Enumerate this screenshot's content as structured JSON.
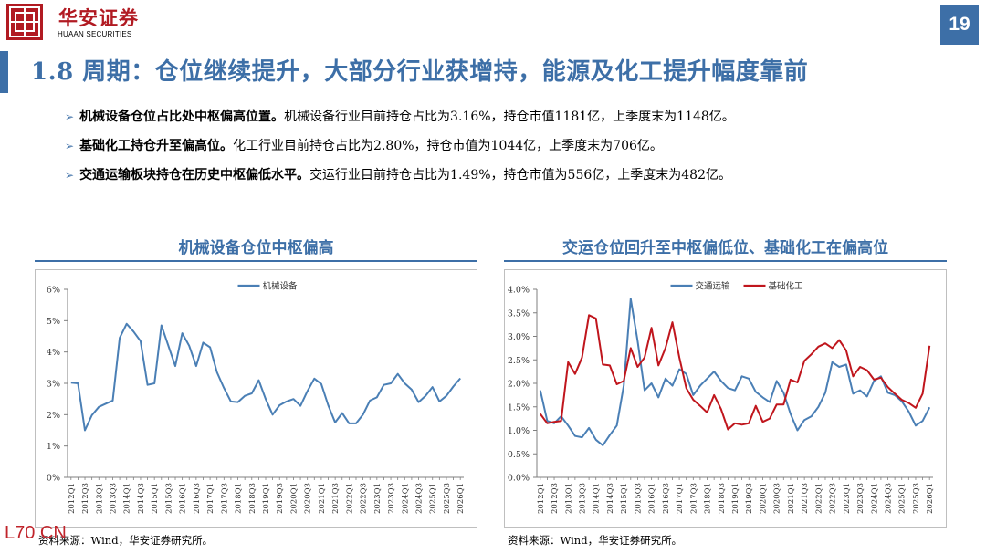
{
  "header": {
    "brand_cn": "华安证券",
    "brand_en": "HUAAN SECURITIES",
    "page_number": "19"
  },
  "title": "1.8 周期：仓位继续提升，大部分行业获增持，能源及化工提升幅度靠前",
  "bullets": [
    {
      "bold": "机械设备仓位占比处中枢偏高位置。",
      "text": "机械设备行业目前持仓占比为3.16%，持仓市值1181亿，上季度末为1148亿。"
    },
    {
      "bold": "基础化工持仓升至偏高位。",
      "text": "化工行业目前持仓占比为2.80%，持仓市值为1044亿，上季度末为706亿。"
    },
    {
      "bold": "交通运输板块持仓在历史中枢偏低水平。",
      "text": "交运行业目前持仓占比为1.49%，持仓市值为556亿，上季度末为482亿。"
    }
  ],
  "colors": {
    "accent": "#3d6fa7",
    "brand_red": "#b11a22",
    "series_blue": "#4a7fb5",
    "series_red": "#c0161d"
  },
  "charts": {
    "left_title": "机械设备仓位中枢偏高",
    "right_title": "交运仓位回升至中枢偏低位、基础化工在偏高位",
    "left_source": "资料来源：Wind，华安证券研究所。",
    "right_source": "资料来源：Wind，华安证券研究所。"
  },
  "watermark": "L70 CN",
  "chart_data": [
    {
      "type": "line",
      "title": "机械设备仓位中枢偏高",
      "x": [
        "2012Q1",
        "2012Q2",
        "2012Q3",
        "2012Q4",
        "2013Q1",
        "2013Q2",
        "2013Q3",
        "2013Q4",
        "2014Q1",
        "2014Q2",
        "2014Q3",
        "2014Q4",
        "2015Q1",
        "2015Q2",
        "2015Q3",
        "2015Q4",
        "2016Q1",
        "2016Q2",
        "2016Q3",
        "2016Q4",
        "2017Q1",
        "2017Q2",
        "2017Q3",
        "2017Q4",
        "2018Q1",
        "2018Q2",
        "2018Q3",
        "2018Q4",
        "2019Q1",
        "2019Q2",
        "2019Q3",
        "2019Q4",
        "2020Q1",
        "2020Q2",
        "2020Q3",
        "2020Q4",
        "2021Q1",
        "2021Q2",
        "2021Q3",
        "2021Q4",
        "2022Q1",
        "2022Q2",
        "2022Q3",
        "2022Q4",
        "2023Q1",
        "2023Q2",
        "2023Q3",
        "2023Q4",
        "2024Q1",
        "2024Q2",
        "2024Q3",
        "2024Q4",
        "2025Q1",
        "2025Q2",
        "2025Q3",
        "2025Q4",
        "2026Q1"
      ],
      "x_tick_labels": [
        "2012Q1",
        "2012Q3",
        "2013Q1",
        "2013Q3",
        "2014Q1",
        "2014Q3",
        "2015Q1",
        "2015Q3",
        "2016Q1",
        "2016Q3",
        "2017Q1",
        "2017Q3",
        "2018Q1",
        "2018Q3",
        "2019Q1",
        "2019Q3",
        "2020Q1",
        "2020Q3",
        "2021Q1",
        "2021Q3",
        "2022Q1",
        "2022Q3",
        "2023Q1",
        "2023Q3",
        "2024Q1",
        "2024Q3",
        "2025Q1",
        "2025Q3",
        "2026Q1"
      ],
      "y_ticks": [
        "0%",
        "1%",
        "2%",
        "3%",
        "4%",
        "5%",
        "6%"
      ],
      "ylim": [
        0,
        6
      ],
      "legend": "top-center",
      "grid": false,
      "series": [
        {
          "name": "机械设备",
          "color": "#4a7fb5",
          "values": [
            3.02,
            3.0,
            1.5,
            1.98,
            2.25,
            2.35,
            2.45,
            4.45,
            4.9,
            4.65,
            4.35,
            2.95,
            3.0,
            4.85,
            4.2,
            3.55,
            4.6,
            4.2,
            3.55,
            4.3,
            4.15,
            3.35,
            2.85,
            2.42,
            2.4,
            2.6,
            2.68,
            3.1,
            2.5,
            2.0,
            2.3,
            2.42,
            2.5,
            2.28,
            2.75,
            3.15,
            2.98,
            2.3,
            1.75,
            2.05,
            1.72,
            1.72,
            2.0,
            2.45,
            2.55,
            2.95,
            3.0,
            3.3,
            3.0,
            2.8,
            2.4,
            2.6,
            2.88,
            2.42,
            2.6,
            2.9,
            3.16
          ]
        }
      ]
    },
    {
      "type": "line",
      "title": "交运仓位回升至中枢偏低位、基础化工在偏高位",
      "x": [
        "2012Q1",
        "2012Q2",
        "2012Q3",
        "2012Q4",
        "2013Q1",
        "2013Q2",
        "2013Q3",
        "2013Q4",
        "2014Q1",
        "2014Q2",
        "2014Q3",
        "2014Q4",
        "2015Q1",
        "2015Q2",
        "2015Q3",
        "2015Q4",
        "2016Q1",
        "2016Q2",
        "2016Q3",
        "2016Q4",
        "2017Q1",
        "2017Q2",
        "2017Q3",
        "2017Q4",
        "2018Q1",
        "2018Q2",
        "2018Q3",
        "2018Q4",
        "2019Q1",
        "2019Q2",
        "2019Q3",
        "2019Q4",
        "2020Q1",
        "2020Q2",
        "2020Q3",
        "2020Q4",
        "2021Q1",
        "2021Q2",
        "2021Q3",
        "2021Q4",
        "2022Q1",
        "2022Q2",
        "2022Q3",
        "2022Q4",
        "2023Q1",
        "2023Q2",
        "2023Q3",
        "2023Q4",
        "2024Q1",
        "2024Q2",
        "2024Q3",
        "2024Q4",
        "2025Q1",
        "2025Q2",
        "2025Q3",
        "2025Q4",
        "2026Q1"
      ],
      "x_tick_labels": [
        "2012Q1",
        "2012Q3",
        "2013Q1",
        "2013Q3",
        "2014Q1",
        "2014Q3",
        "2015Q1",
        "2015Q3",
        "2016Q1",
        "2016Q3",
        "2017Q1",
        "2017Q3",
        "2018Q1",
        "2018Q3",
        "2019Q1",
        "2019Q3",
        "2020Q1",
        "2020Q3",
        "2021Q1",
        "2021Q3",
        "2022Q1",
        "2022Q3",
        "2023Q1",
        "2023Q3",
        "2024Q1",
        "2024Q3",
        "2025Q1",
        "2025Q3",
        "2026Q1"
      ],
      "y_ticks": [
        "0.0%",
        "0.5%",
        "1.0%",
        "1.5%",
        "2.0%",
        "2.5%",
        "3.0%",
        "3.5%",
        "4.0%"
      ],
      "ylim": [
        0,
        4
      ],
      "legend": "top-center",
      "grid": false,
      "series": [
        {
          "name": "交通运输",
          "color": "#4a7fb5",
          "values": [
            1.85,
            1.2,
            1.15,
            1.3,
            1.1,
            0.88,
            0.85,
            1.05,
            0.8,
            0.68,
            0.9,
            1.1,
            1.95,
            3.8,
            2.9,
            1.85,
            2.0,
            1.7,
            2.1,
            1.95,
            2.3,
            2.2,
            1.75,
            1.95,
            2.1,
            2.25,
            2.05,
            1.9,
            1.85,
            2.15,
            2.1,
            1.82,
            1.7,
            1.6,
            2.05,
            1.8,
            1.35,
            1.0,
            1.22,
            1.3,
            1.5,
            1.8,
            2.45,
            2.35,
            2.4,
            1.78,
            1.85,
            1.72,
            2.05,
            2.15,
            1.8,
            1.75,
            1.62,
            1.4,
            1.1,
            1.2,
            1.49
          ]
        },
        {
          "name": "基础化工",
          "color": "#c0161d",
          "values": [
            1.35,
            1.15,
            1.18,
            1.2,
            2.45,
            2.2,
            2.55,
            3.45,
            3.38,
            2.4,
            2.38,
            1.98,
            2.05,
            2.75,
            2.35,
            2.55,
            3.18,
            2.38,
            2.75,
            3.3,
            2.55,
            1.9,
            1.65,
            1.52,
            1.38,
            1.75,
            1.45,
            1.02,
            1.15,
            1.12,
            1.15,
            1.52,
            1.18,
            1.25,
            1.55,
            1.55,
            2.08,
            2.02,
            2.48,
            2.62,
            2.78,
            2.85,
            2.75,
            2.92,
            2.7,
            2.15,
            2.35,
            2.28,
            2.08,
            2.12,
            1.92,
            1.78,
            1.65,
            1.58,
            1.48,
            1.78,
            2.8
          ]
        }
      ]
    }
  ]
}
